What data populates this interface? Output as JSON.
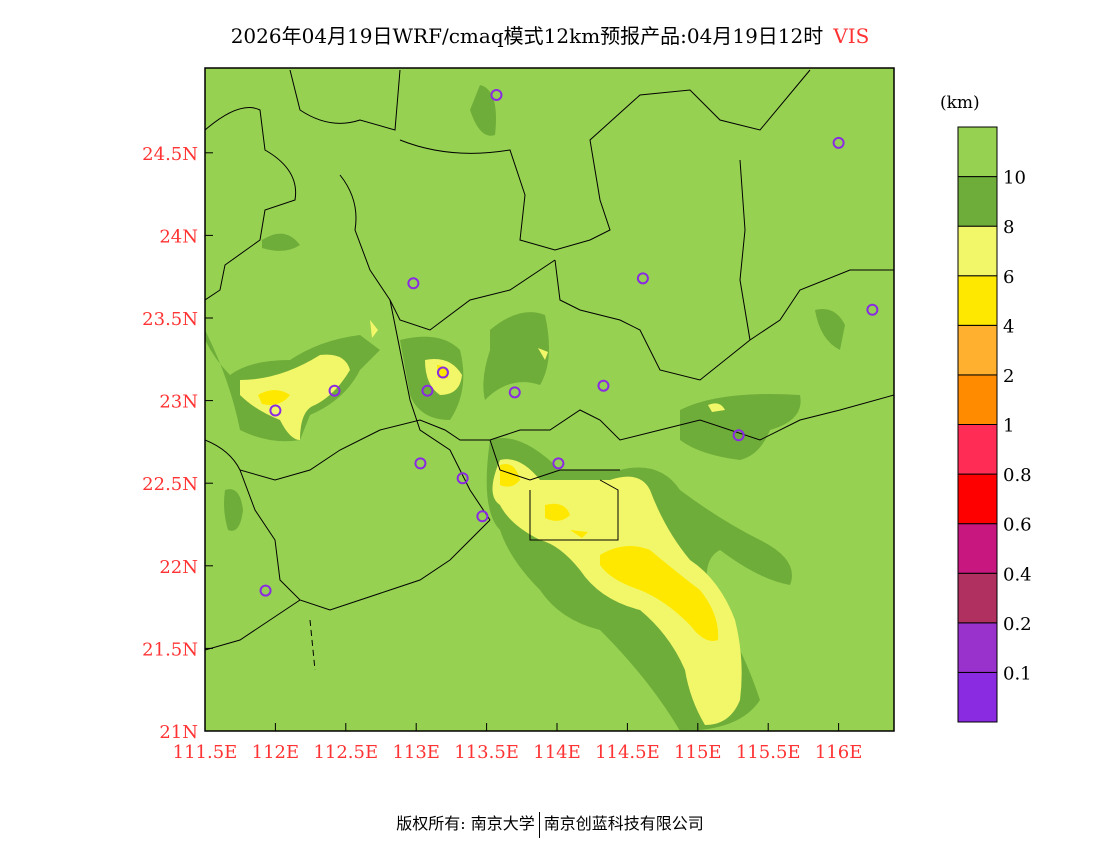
{
  "title": {
    "text": "2026年04月19日WRF/cmaq模式12km预报产品:04月19日12时",
    "variable": "VIS"
  },
  "colorbar": {
    "unit": "(km)",
    "colors": [
      "#8a2be2",
      "#9932cc",
      "#b03060",
      "#c8177e",
      "#ff0000",
      "#ff2d55",
      "#ff8c00",
      "#ffb02e",
      "#ffe800",
      "#f2f769",
      "#6fad3a",
      "#96d152"
    ],
    "labels": [
      "0.1",
      "0.2",
      "0.4",
      "0.6",
      "0.8",
      "1",
      "2",
      "4",
      "6",
      "8",
      "10"
    ]
  },
  "chart_data": {
    "type": "contour-map",
    "variable": "VIS",
    "xlim": [
      111.5,
      116.4
    ],
    "ylim": [
      21,
      25
    ],
    "x_ticks": [
      "111.5E",
      "112E",
      "112.5E",
      "113E",
      "113.5E",
      "114E",
      "114.5E",
      "115E",
      "115.5E",
      "116E"
    ],
    "y_ticks": [
      "21N",
      "21.5N",
      "22N",
      "22.5N",
      "23N",
      "23.5N",
      "24N",
      "24.5N"
    ],
    "stations": [
      [
        113.57,
        24.85
      ],
      [
        116.0,
        24.56
      ],
      [
        112.98,
        23.71
      ],
      [
        114.61,
        23.74
      ],
      [
        116.24,
        23.55
      ],
      [
        113.19,
        23.17
      ],
      [
        113.08,
        23.06
      ],
      [
        112.42,
        23.06
      ],
      [
        112.0,
        22.94
      ],
      [
        113.7,
        23.05
      ],
      [
        114.33,
        23.09
      ],
      [
        115.29,
        22.79
      ],
      [
        114.01,
        22.62
      ],
      [
        113.03,
        22.62
      ],
      [
        113.33,
        22.53
      ],
      [
        113.47,
        22.3
      ],
      [
        111.93,
        21.85
      ]
    ]
  },
  "footer": {
    "left": "版权所有: 南京大学",
    "right": "南京创蓝科技有限公司"
  }
}
